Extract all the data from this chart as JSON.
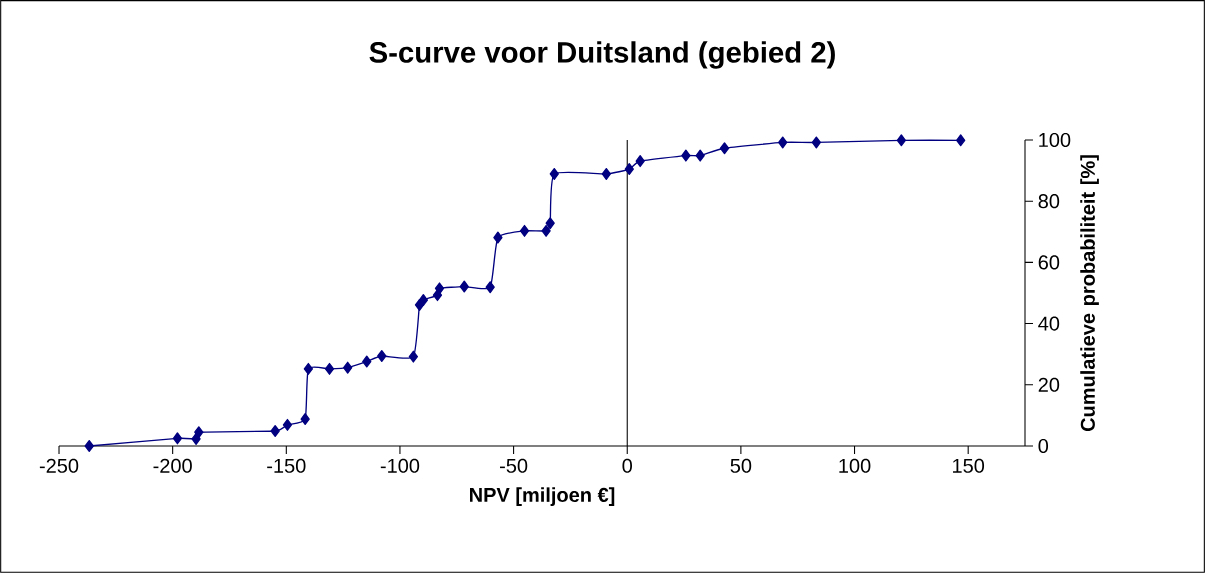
{
  "chart_data": {
    "type": "line",
    "title": "S-curve voor Duitsland (gebied 2)",
    "xlabel": "NPV [miljoen €]",
    "ylabel": "Cumulatieve probabiliteit [%]",
    "xlim": [
      -250,
      175
    ],
    "xticks": [
      -250,
      -200,
      -150,
      -100,
      -50,
      0,
      50,
      100,
      150
    ],
    "ylim": [
      0,
      100
    ],
    "yticks": [
      0,
      20,
      40,
      60,
      80,
      100
    ],
    "grid": false,
    "marker": "diamond",
    "line_style": "solid",
    "ref_lines": [
      {
        "axis": "x",
        "value": 0,
        "color": "#000000"
      }
    ],
    "series": [
      {
        "color": "#000080",
        "x": [
          -236.7,
          -197.9,
          -189.7,
          -188.5,
          -154.9,
          -149.5,
          -141.7,
          -140.3,
          -131,
          -123,
          -114.6,
          -108,
          -94.1,
          -91.4,
          -89.7,
          -83.5,
          -82.6,
          -71.7,
          -60.3,
          -56.9,
          -45.2,
          -35.7,
          -33.9,
          -32.1,
          -9.2,
          0.9,
          5.7,
          25.8,
          32.1,
          42.8,
          68.4,
          83.2,
          120.6,
          146.7
        ],
        "values": [
          0,
          2.5,
          2.3,
          4.5,
          4.9,
          6.9,
          8.8,
          25.2,
          25.2,
          25.6,
          27.6,
          29.4,
          29.2,
          46.1,
          47.7,
          49.3,
          51.5,
          52.1,
          51.9,
          68.1,
          70.3,
          70.3,
          72.8,
          88.9,
          88.9,
          90.5,
          93.1,
          94.9,
          94.9,
          97.3,
          99.2,
          99.2,
          99.9,
          99.9
        ]
      }
    ]
  }
}
